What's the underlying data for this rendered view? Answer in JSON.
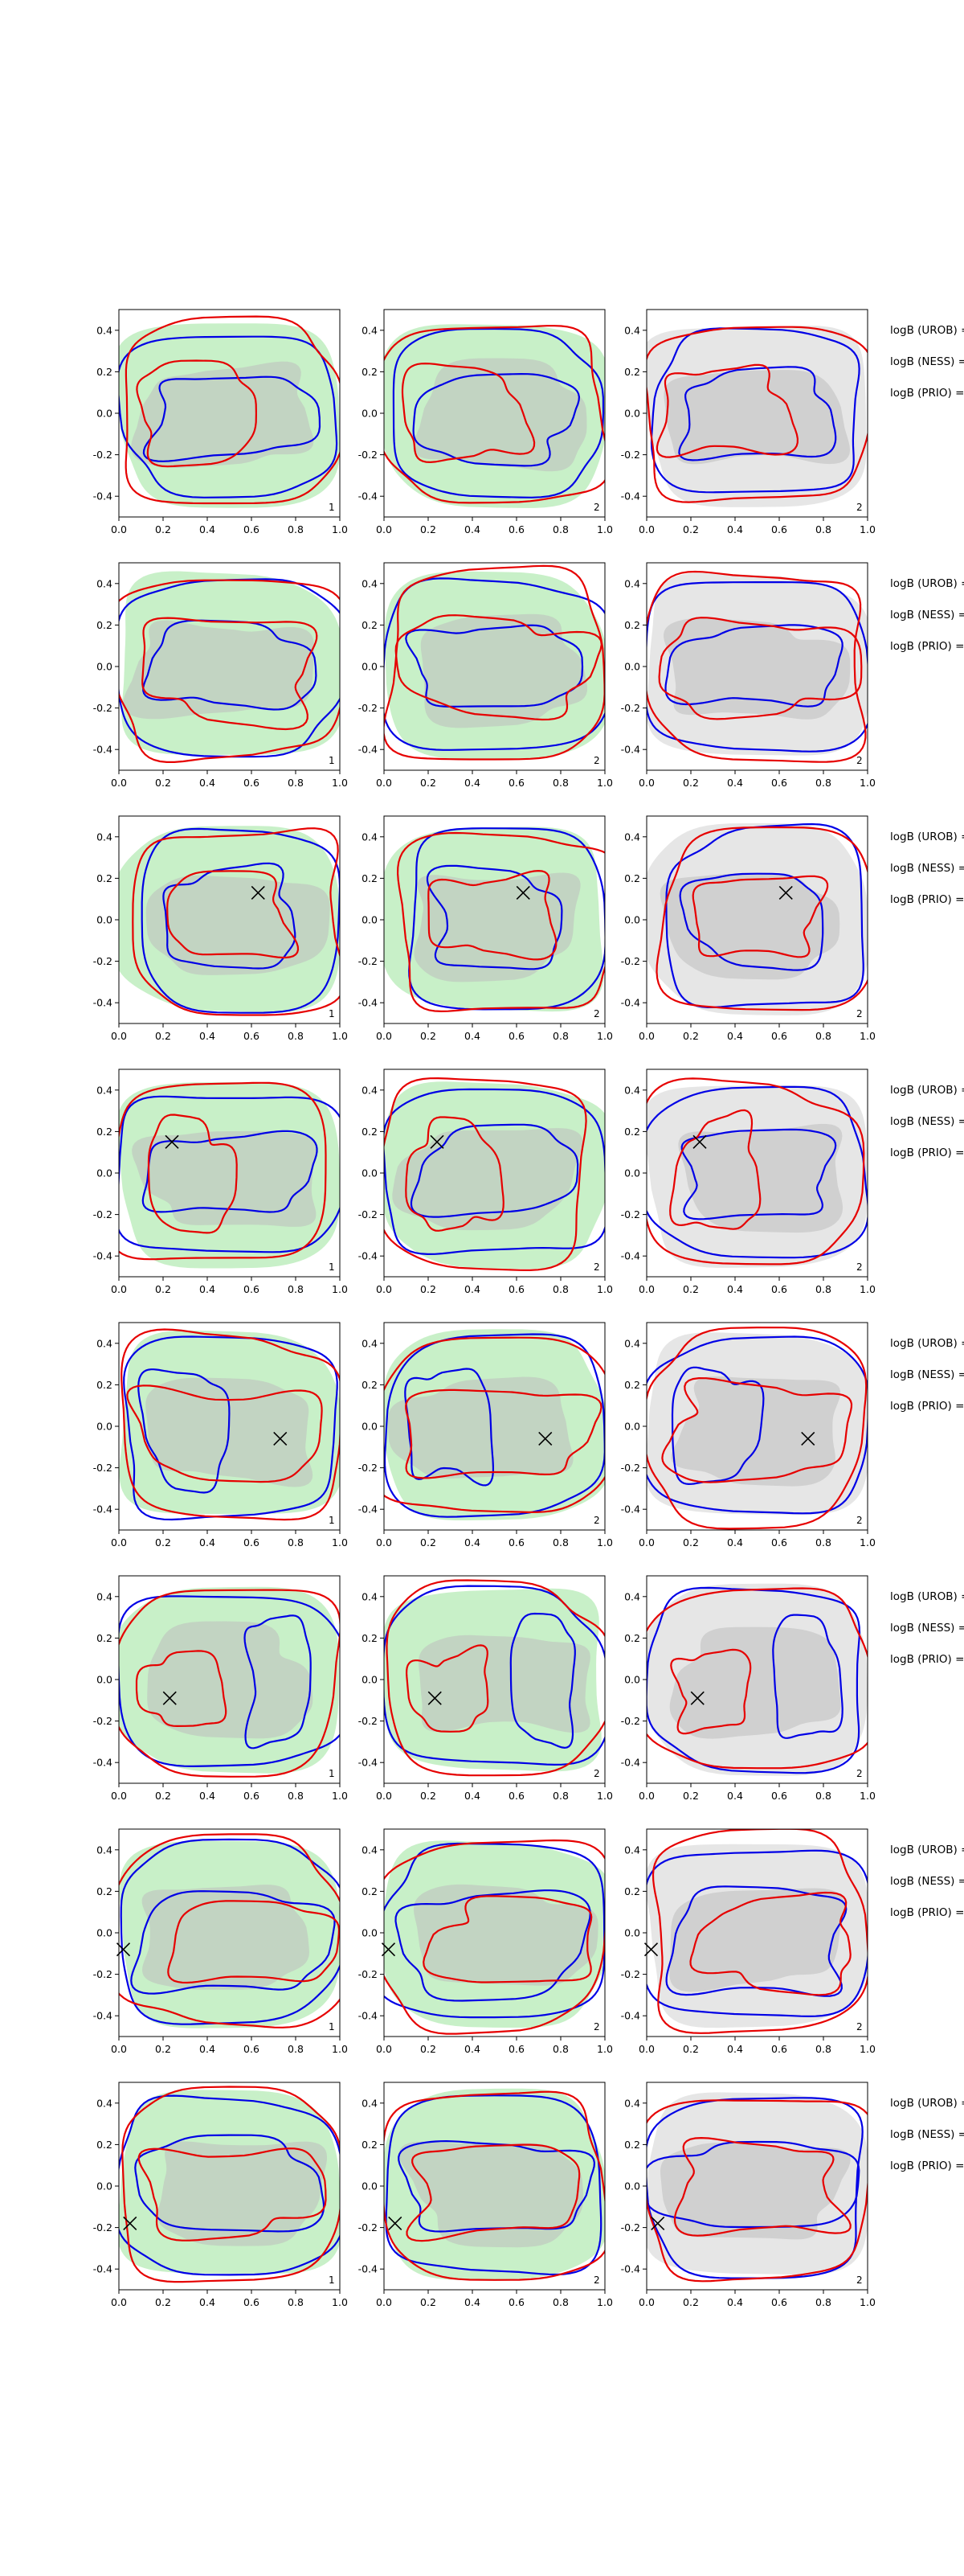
{
  "chart_data": {
    "type": "contour",
    "layout": "8 rows x 3 columns",
    "xlim": [
      0.0,
      1.0
    ],
    "ylim": [
      -0.5,
      0.5
    ],
    "x_ticks": [
      "0.0",
      "0.2",
      "0.4",
      "0.6",
      "0.8",
      "1.0"
    ],
    "y_ticks": [
      "0.4",
      "0.2",
      "0.0",
      "-0.2",
      "-0.4"
    ],
    "column_index_labels": [
      "1",
      "2",
      "2"
    ],
    "row_labels": [
      "logB (UROB) =",
      "logB (NESS) =",
      "logB (PRIO) ="
    ],
    "marker": "x",
    "marker_positions": [
      null,
      null,
      {
        "x": 0.63,
        "y": 0.13
      },
      {
        "x": 0.24,
        "y": 0.15
      },
      {
        "x": 0.73,
        "y": -0.06
      },
      {
        "x": 0.23,
        "y": -0.09
      },
      {
        "x": 0.02,
        "y": -0.08
      },
      {
        "x": 0.05,
        "y": -0.18
      }
    ],
    "series": [
      {
        "name": "filled-region-green",
        "color": "#c8f0c8"
      },
      {
        "name": "filled-region-grey",
        "color": "#bdbdbd"
      },
      {
        "name": "contour-blue",
        "color": "#0000e6"
      },
      {
        "name": "contour-red",
        "color": "#e60000"
      }
    ]
  }
}
